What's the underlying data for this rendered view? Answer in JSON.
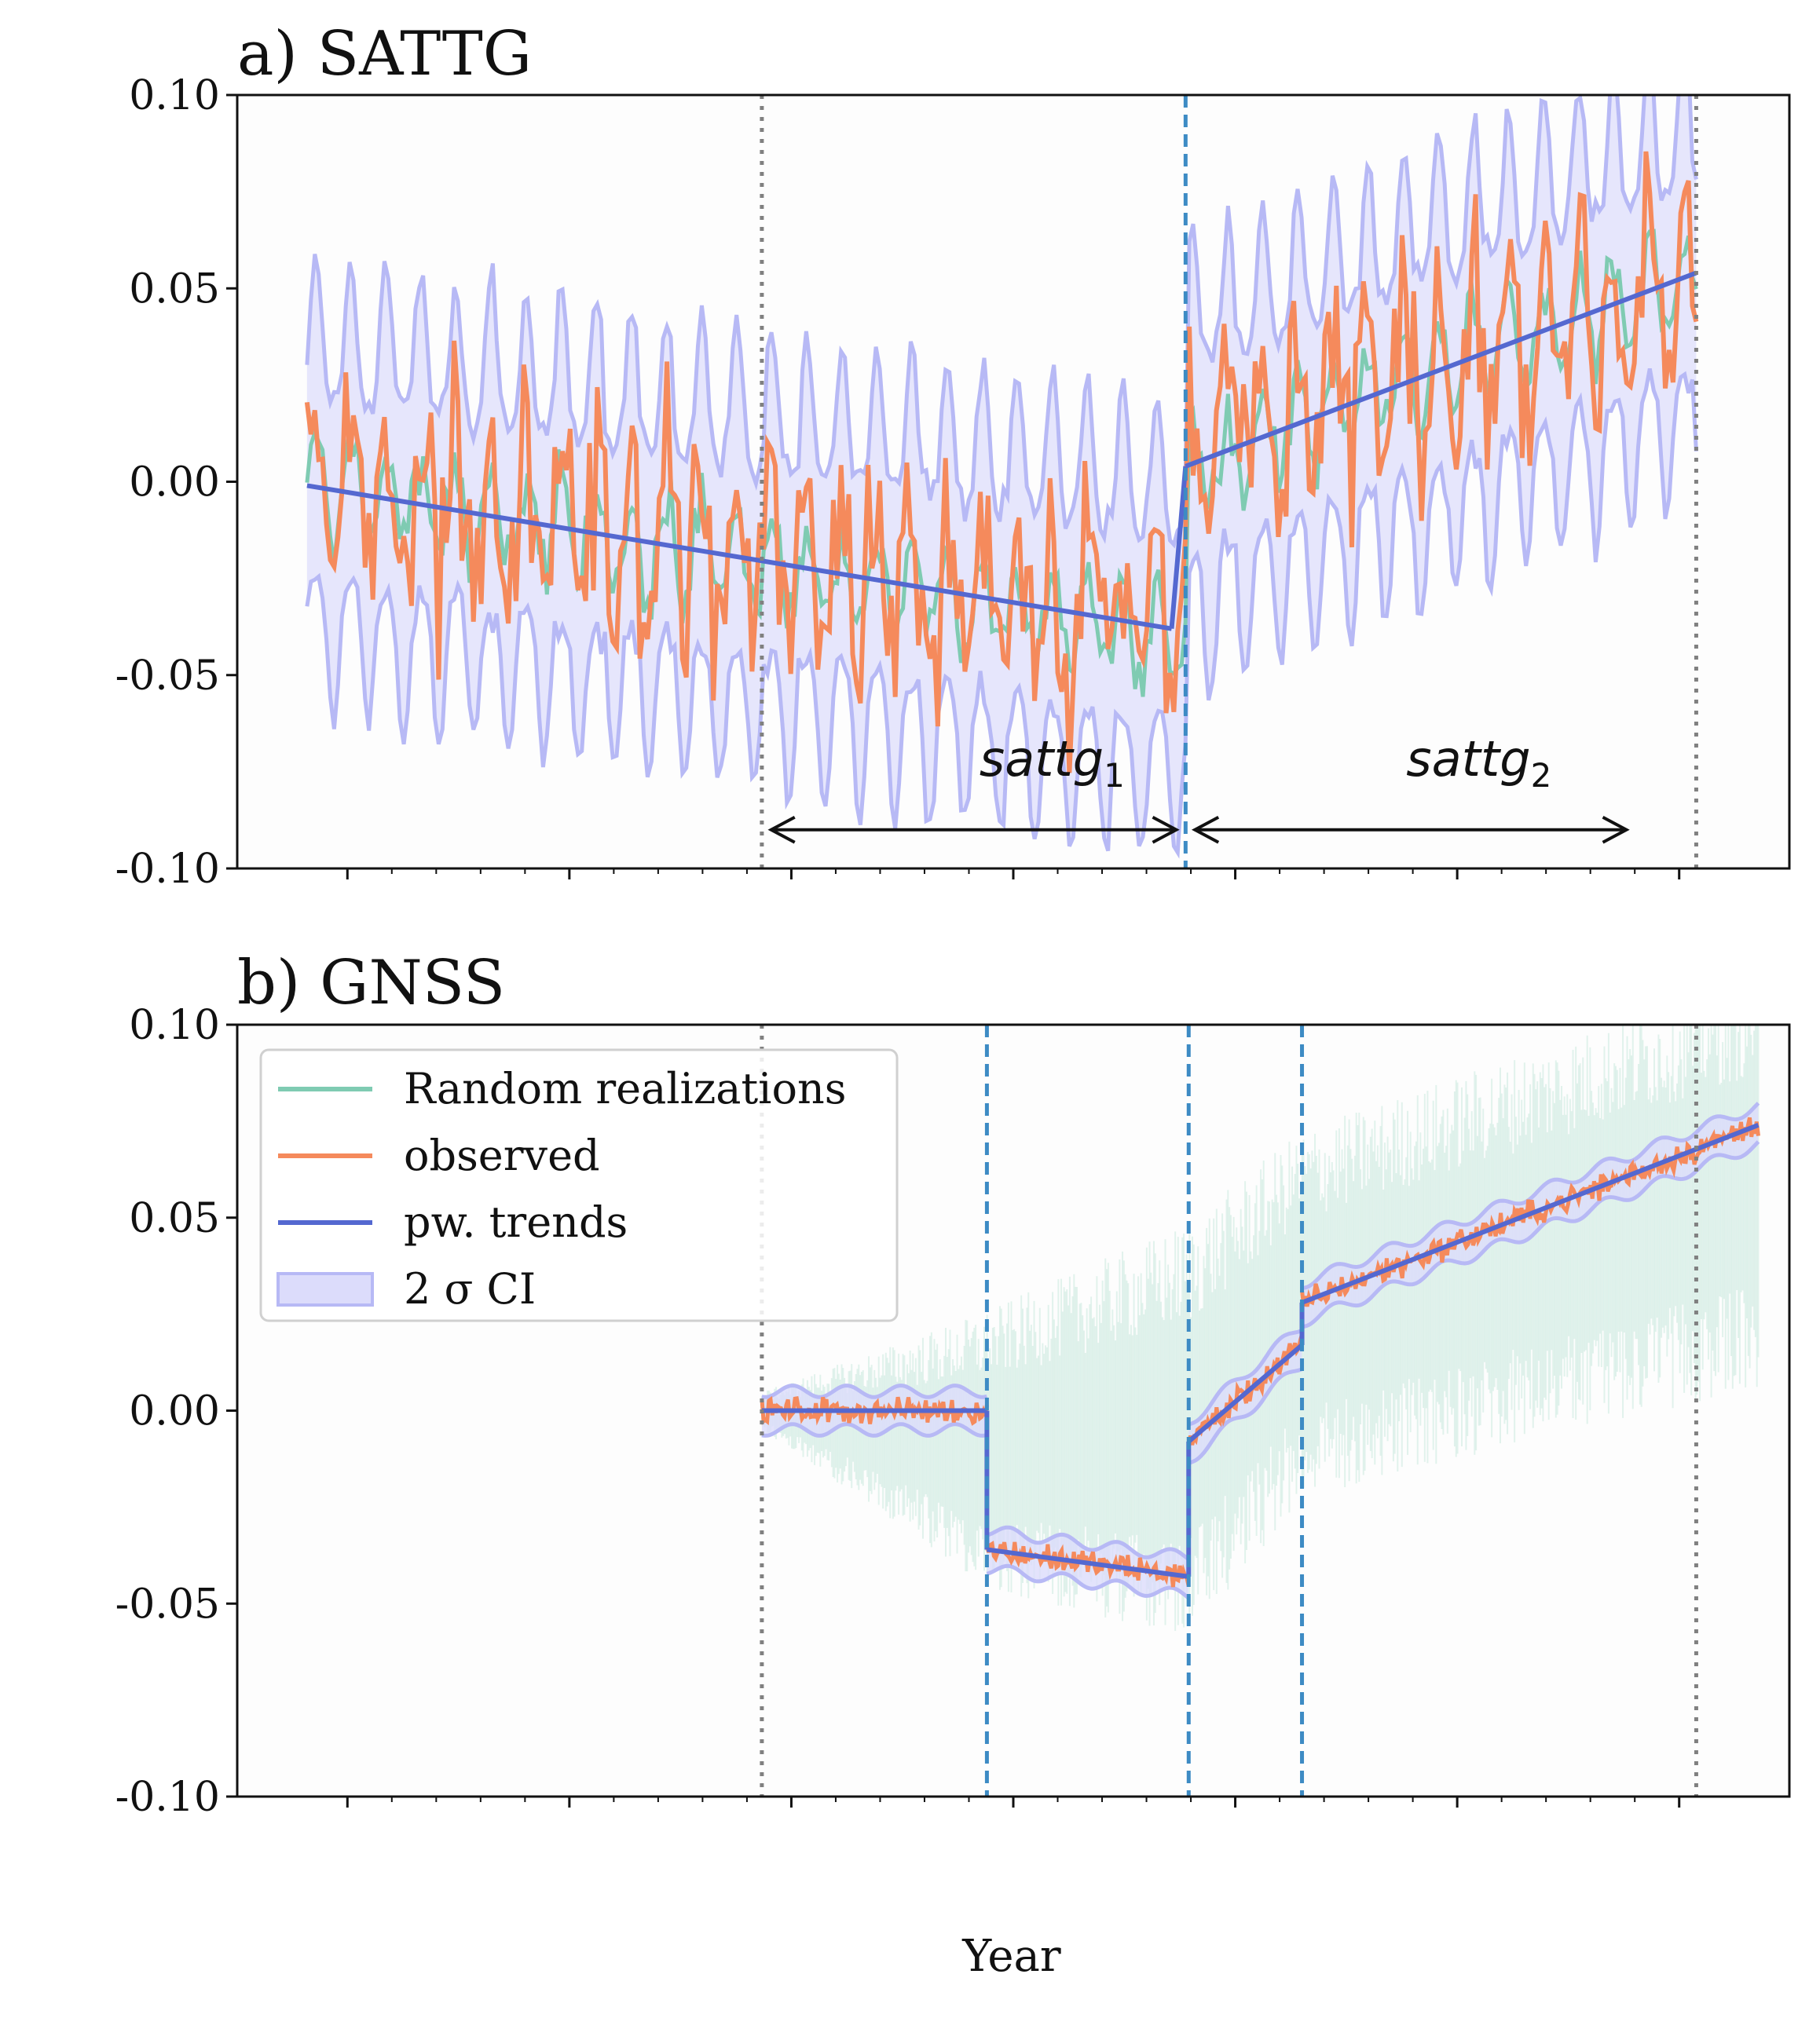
{
  "colors": {
    "random_realizations": "#7fcbb2",
    "observed": "#f58a5c",
    "pw_trends": "#5468d0",
    "ci_fill": "#dcdcfb",
    "ci_edge": "#b7b9f5",
    "changepoint": "#3d8bc4",
    "boundary": "#808080"
  },
  "xlabel": "Year",
  "legend": {
    "placement": "upper-left (panel b)",
    "items": [
      {
        "label": "Random realizations",
        "kind": "line",
        "color": "#7fcbb2"
      },
      {
        "label": "observed",
        "kind": "line",
        "color": "#f58a5c"
      },
      {
        "label": "pw. trends",
        "kind": "line",
        "color": "#5468d0"
      },
      {
        "label": "2 σ CI",
        "kind": "patch",
        "color": "#dcdcfb"
      }
    ]
  },
  "chart_data": [
    {
      "type": "line",
      "title": "a) SATTG",
      "ylim": [
        -0.1,
        0.1
      ],
      "yticks": [
        0.1,
        0.05,
        0.0,
        -0.05,
        -0.1
      ],
      "ytick_labels": [
        "0.10",
        "0.05",
        "0.00",
        "-0.05",
        "-0.10"
      ],
      "xlim": [
        0,
        1
      ],
      "xticks_major": [
        0.071,
        0.214,
        0.357,
        0.5,
        0.643,
        0.786,
        0.929
      ],
      "xtick_labels": [],
      "grid": false,
      "boundaries": [
        0.338,
        0.94
      ],
      "changepoints": [
        0.611
      ],
      "series_noise": {
        "x_start": 0.045,
        "x_end": 0.94,
        "n": 360,
        "season_period": 0.0226,
        "season_amp": 0.023,
        "realization_amp": 0.012,
        "observed_amp": 0.022,
        "ci_halfwidth": 0.03,
        "ci_season_extra": 0.012
      },
      "trend_segments": [
        {
          "x": [
            0.045,
            0.602
          ],
          "y": [
            -0.001,
            -0.038
          ]
        },
        {
          "x": [
            0.611,
            0.94
          ],
          "y": [
            0.004,
            0.054
          ]
        }
      ],
      "annotations": [
        {
          "text": "sattg",
          "sub": "1",
          "x_text": 0.525,
          "y_text": -0.076,
          "arrow": {
            "x": [
              0.344,
              0.605
            ],
            "y": -0.09
          }
        },
        {
          "text": "sattg",
          "sub": "2",
          "x_text": 0.8,
          "y_text": -0.076,
          "arrow": {
            "x": [
              0.617,
              0.895
            ],
            "y": -0.09
          }
        }
      ]
    },
    {
      "type": "line",
      "title": "b) GNSS",
      "ylim": [
        -0.1,
        0.1
      ],
      "yticks": [
        0.1,
        0.05,
        0.0,
        -0.05,
        -0.1
      ],
      "ytick_labels": [
        "0.10",
        "0.05",
        "0.00",
        "-0.05",
        "-0.10"
      ],
      "xlim": [
        0,
        1
      ],
      "xticks_major": [
        0.071,
        0.214,
        0.357,
        0.5,
        0.643,
        0.786,
        0.929
      ],
      "xtick_labels": [],
      "grid": false,
      "boundaries": [
        0.338,
        0.94
      ],
      "changepoints": [
        0.483,
        0.613,
        0.686
      ],
      "observed_range": [
        0.338,
        0.98
      ],
      "ci_halfwidth": 0.005,
      "trend_segments": [
        {
          "x": [
            0.338,
            0.483
          ],
          "y": [
            0.0,
            0.0
          ]
        },
        {
          "x": [
            0.483,
            0.613
          ],
          "y": [
            -0.036,
            -0.043
          ]
        },
        {
          "x": [
            0.613,
            0.686
          ],
          "y": [
            -0.008,
            0.017
          ]
        },
        {
          "x": [
            0.686,
            0.98
          ],
          "y": [
            0.028,
            0.074
          ]
        }
      ],
      "random_realizations_band": {
        "x": [
          0.338,
          0.483,
          0.613,
          0.686,
          0.98
        ],
        "center": [
          0.0,
          -0.01,
          -0.005,
          0.025,
          0.06
        ],
        "halfwidth": [
          0.004,
          0.03,
          0.045,
          0.04,
          0.045
        ]
      }
    }
  ]
}
